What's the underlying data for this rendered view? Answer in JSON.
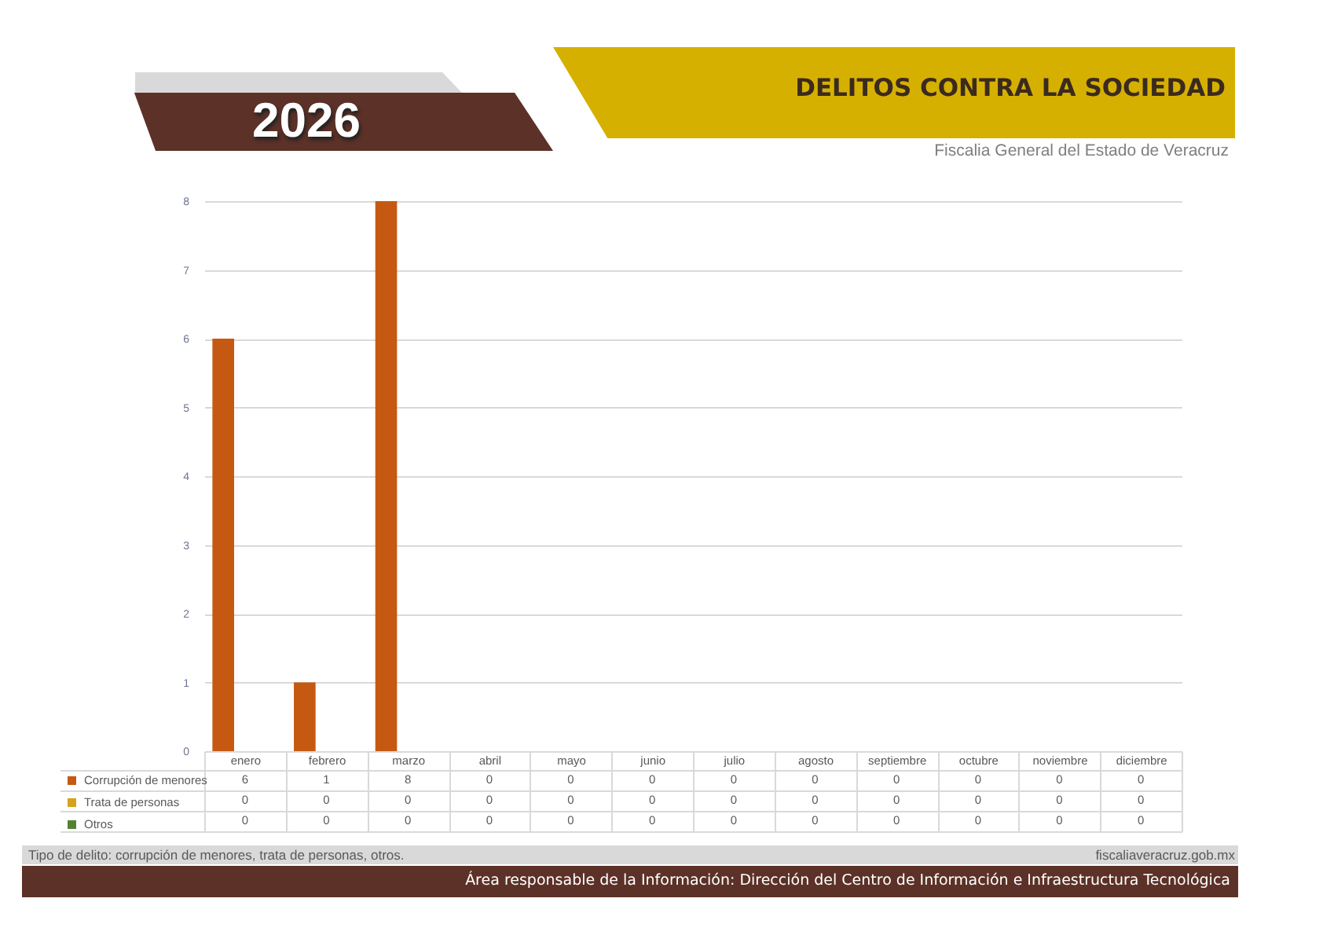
{
  "chart_data": {
    "type": "bar",
    "title": "DELITOS CONTRA LA SOCIEDAD",
    "subtitle": "Fiscalia General del Estado de Veracruz",
    "annotations": [
      "2026",
      "Tipo de delito: corrupción de menores, trata de personas, otros.",
      "fiscaliaveracruz.gob.mx",
      "Área responsable de la Información: Dirección del Centro de Información e Infraestructura Tecnológica"
    ],
    "categories": [
      "enero",
      "febrero",
      "marzo",
      "abril",
      "mayo",
      "junio",
      "julio",
      "agosto",
      "septiembre",
      "octubre",
      "noviembre",
      "diciembre"
    ],
    "series": [
      {
        "name": "Corrupción de menores",
        "color": "#c65911",
        "values": [
          6,
          1,
          8,
          0,
          0,
          0,
          0,
          0,
          0,
          0,
          0,
          0
        ]
      },
      {
        "name": "Trata de personas",
        "color": "#d4a21b",
        "values": [
          0,
          0,
          0,
          0,
          0,
          0,
          0,
          0,
          0,
          0,
          0,
          0
        ]
      },
      {
        "name": "Otros",
        "color": "#548235",
        "values": [
          0,
          0,
          0,
          0,
          0,
          0,
          0,
          0,
          0,
          0,
          0,
          0
        ]
      }
    ],
    "ylim": [
      0,
      8
    ],
    "yticks": [
      0,
      1,
      2,
      3,
      4,
      5,
      6,
      7,
      8
    ],
    "grid": "y",
    "legend": "bottom",
    "data_labels": true
  }
}
